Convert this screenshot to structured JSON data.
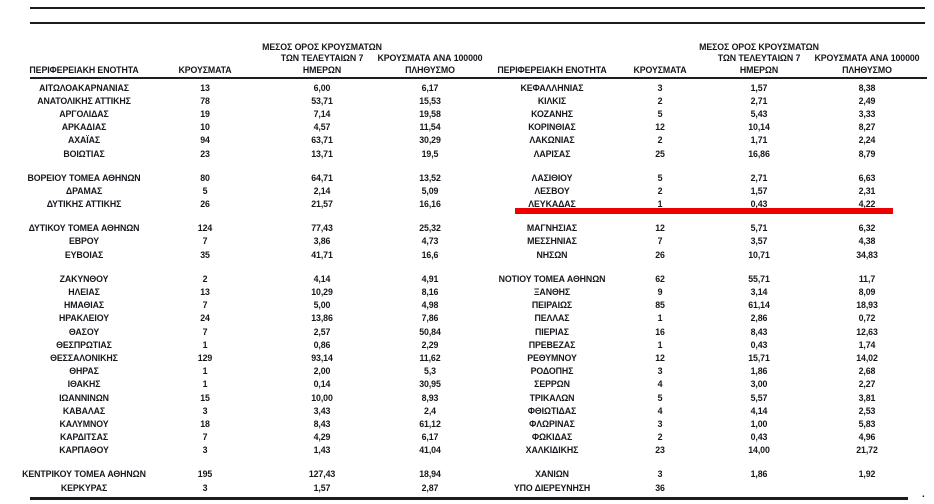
{
  "page": {
    "background": "#ffffff",
    "text_color": "#17171d",
    "rule_color": "#1c1c1f",
    "highlight_color": "#ee0000",
    "trailing_period": "."
  },
  "header": {
    "col_region": "ΠΕΡΙΦΕΡΕΙΑΚΗ ΕΝΟΤΗΤΑ",
    "col_cases": "ΚΡΟΥΣΜΑΤΑ",
    "col_avg7_lines": [
      "ΜΕΣΟΣ ΟΡΟΣ ΚΡΟΥΣΜΑΤΩΝ",
      "ΤΩΝ ΤΕΛΕΥΤΑΙΩΝ 7",
      "ΗΜΕΡΩΝ"
    ],
    "col_per100k_lines": [
      "ΚΡΟΥΣΜΑΤΑ ΑΝΑ 100000",
      "ΠΛΗΘΥΣΜΟ"
    ]
  },
  "left_table": {
    "groups": [
      [
        [
          "ΑΙΤΩΛΟΑΚΑΡΝΑΝΙΑΣ",
          "13",
          "6,00",
          "6,17"
        ],
        [
          "ΑΝΑΤΟΛΙΚΗΣ ΑΤΤΙΚΗΣ",
          "78",
          "53,71",
          "15,53"
        ],
        [
          "ΑΡΓΟΛΙΔΑΣ",
          "19",
          "7,14",
          "19,58"
        ],
        [
          "ΑΡΚΑΔΙΑΣ",
          "10",
          "4,57",
          "11,54"
        ],
        [
          "ΑΧΑΪΑΣ",
          "94",
          "63,71",
          "30,29"
        ],
        [
          "ΒΟΙΩΤΙΑΣ",
          "23",
          "13,71",
          "19,5"
        ]
      ],
      [
        [
          "ΒΟΡΕΙΟΥ ΤΟΜΕΑ ΑΘΗΝΩΝ",
          "80",
          "64,71",
          "13,52"
        ],
        [
          "ΔΡΑΜΑΣ",
          "5",
          "2,14",
          "5,09"
        ],
        [
          "ΔΥΤΙΚΗΣ ΑΤΤΙΚΗΣ",
          "26",
          "21,57",
          "16,16"
        ]
      ],
      [
        [
          "ΔΥΤΙΚΟΥ ΤΟΜΕΑ ΑΘΗΝΩΝ",
          "124",
          "77,43",
          "25,32"
        ],
        [
          "ΕΒΡΟΥ",
          "7",
          "3,86",
          "4,73"
        ],
        [
          "ΕΥΒΟΙΑΣ",
          "35",
          "41,71",
          "16,6"
        ]
      ],
      [
        [
          "ΖΑΚΥΝΘΟΥ",
          "2",
          "4,14",
          "4,91"
        ],
        [
          "ΗΛΕΙΑΣ",
          "13",
          "10,29",
          "8,16"
        ],
        [
          "ΗΜΑΘΙΑΣ",
          "7",
          "5,00",
          "4,98"
        ],
        [
          "ΗΡΑΚΛΕΙΟΥ",
          "24",
          "13,86",
          "7,86"
        ],
        [
          "ΘΑΣΟΥ",
          "7",
          "2,57",
          "50,84"
        ],
        [
          "ΘΕΣΠΡΩΤΙΑΣ",
          "1",
          "0,86",
          "2,29"
        ],
        [
          "ΘΕΣΣΑΛΟΝΙΚΗΣ",
          "129",
          "93,14",
          "11,62"
        ],
        [
          "ΘΗΡΑΣ",
          "1",
          "2,00",
          "5,3"
        ],
        [
          "ΙΘΑΚΗΣ",
          "1",
          "0,14",
          "30,95"
        ],
        [
          "ΙΩΑΝΝΙΝΩΝ",
          "15",
          "10,00",
          "8,93"
        ],
        [
          "ΚΑΒΑΛΑΣ",
          "3",
          "3,43",
          "2,4"
        ],
        [
          "ΚΑΛΥΜΝΟΥ",
          "18",
          "8,43",
          "61,12"
        ],
        [
          "ΚΑΡΔΙΤΣΑΣ",
          "7",
          "4,29",
          "6,17"
        ],
        [
          "ΚΑΡΠΑΘΟΥ",
          "3",
          "1,43",
          "41,04"
        ]
      ],
      [
        [
          "ΚΕΝΤΡΙΚΟΥ ΤΟΜΕΑ ΑΘΗΝΩΝ",
          "195",
          "127,43",
          "18,94"
        ],
        [
          "ΚΕΡΚΥΡΑΣ",
          "3",
          "1,57",
          "2,87"
        ]
      ]
    ]
  },
  "right_table": {
    "groups": [
      [
        [
          "ΚΕΦΑΛΛΗΝΙΑΣ",
          "3",
          "1,57",
          "8,38"
        ],
        [
          "ΚΙΛΚΙΣ",
          "2",
          "2,71",
          "2,49"
        ],
        [
          "ΚΟΖΑΝΗΣ",
          "5",
          "5,43",
          "3,33"
        ],
        [
          "ΚΟΡΙΝΘΙΑΣ",
          "12",
          "10,14",
          "8,27"
        ],
        [
          "ΛΑΚΩΝΙΑΣ",
          "2",
          "1,71",
          "2,24"
        ],
        [
          "ΛΑΡΙΣΑΣ",
          "25",
          "16,86",
          "8,79"
        ]
      ],
      [
        [
          "ΛΑΣΙΘΙΟΥ",
          "5",
          "2,71",
          "6,63"
        ],
        [
          "ΛΕΣΒΟΥ",
          "2",
          "1,57",
          "2,31"
        ],
        [
          "ΛΕΥΚΑΔΑΣ",
          "1",
          "0,43",
          "4,22"
        ]
      ],
      [
        [
          "ΜΑΓΝΗΣΙΑΣ",
          "12",
          "5,71",
          "6,32"
        ],
        [
          "ΜΕΣΣΗΝΙΑΣ",
          "7",
          "3,57",
          "4,38"
        ],
        [
          "ΝΗΣΩΝ",
          "26",
          "10,71",
          "34,83"
        ]
      ],
      [
        [
          "ΝΟΤΙΟΥ ΤΟΜΕΑ ΑΘΗΝΩΝ",
          "62",
          "55,71",
          "11,7"
        ],
        [
          "ΞΑΝΘΗΣ",
          "9",
          "3,14",
          "8,09"
        ],
        [
          "ΠΕΙΡΑΙΩΣ",
          "85",
          "61,14",
          "18,93"
        ],
        [
          "ΠΕΛΛΑΣ",
          "1",
          "2,86",
          "0,72"
        ],
        [
          "ΠΙΕΡΙΑΣ",
          "16",
          "8,43",
          "12,63"
        ],
        [
          "ΠΡΕΒΕΖΑΣ",
          "1",
          "0,43",
          "1,74"
        ],
        [
          "ΡΕΘΥΜΝΟΥ",
          "12",
          "15,71",
          "14,02"
        ],
        [
          "ΡΟΔΟΠΗΣ",
          "3",
          "1,86",
          "2,68"
        ],
        [
          "ΣΕΡΡΩΝ",
          "4",
          "3,00",
          "2,27"
        ],
        [
          "ΤΡΙΚΑΛΩΝ",
          "5",
          "5,57",
          "3,81"
        ],
        [
          "ΦΘΙΩΤΙΔΑΣ",
          "4",
          "4,14",
          "2,53"
        ],
        [
          "ΦΛΩΡΙΝΑΣ",
          "3",
          "1,00",
          "5,83"
        ],
        [
          "ΦΩΚΙΔΑΣ",
          "2",
          "0,43",
          "4,96"
        ],
        [
          "ΧΑΛΚΙΔΙΚΗΣ",
          "23",
          "14,00",
          "21,72"
        ]
      ],
      [
        [
          "ΧΑΝΙΩΝ",
          "3",
          "1,86",
          "1,92"
        ],
        [
          "ΥΠΟ ΔΙΕΡΕΥΝΗΣΗ",
          "36",
          "",
          ""
        ]
      ]
    ]
  },
  "highlight": {
    "region": "ΛΕΥΚΑΔΑΣ"
  }
}
